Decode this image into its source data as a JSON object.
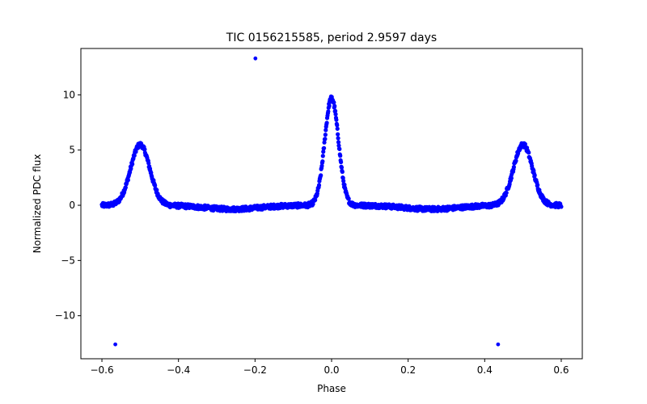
{
  "chart_data": {
    "type": "scatter",
    "title": "TIC 0156215585, period 2.9597 days",
    "xlabel": "Phase",
    "ylabel": "Normalized PDC flux",
    "xlim": [
      -0.655,
      0.655
    ],
    "ylim": [
      -13.9,
      14.2
    ],
    "xticks": [
      -0.6,
      -0.4,
      -0.2,
      0.0,
      0.2,
      0.4,
      0.6
    ],
    "xtick_labels": [
      "−0.6",
      "−0.4",
      "−0.2",
      "0.0",
      "0.2",
      "0.4",
      "0.6"
    ],
    "yticks": [
      -10,
      -5,
      0,
      5,
      10
    ],
    "ytick_labels": [
      "−10",
      "−5",
      "0",
      "5",
      "10"
    ],
    "grid": false,
    "marker_color": "#0000ff",
    "phase_range": [
      -0.6,
      0.6
    ],
    "baseline_flux": 0.0,
    "peaks": [
      {
        "phase": -0.5,
        "flux": 5.5,
        "width": 0.025
      },
      {
        "phase": 0.0,
        "flux": 9.7,
        "width": 0.018
      },
      {
        "phase": 0.5,
        "flux": 5.5,
        "width": 0.025
      }
    ],
    "outliers": [
      {
        "x": -0.199,
        "y": 13.3
      },
      {
        "x": -0.565,
        "y": -12.6
      },
      {
        "x": 0.435,
        "y": -12.6
      }
    ]
  }
}
